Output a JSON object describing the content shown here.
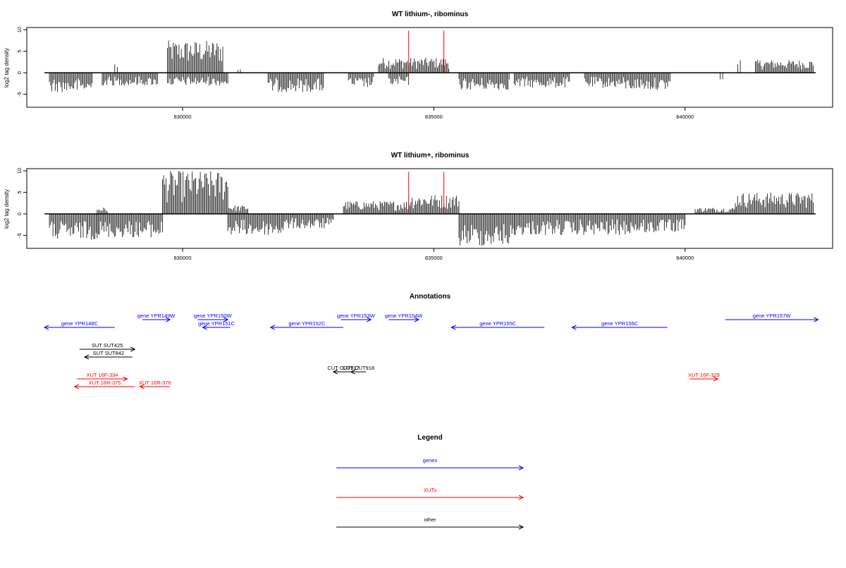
{
  "colors": {
    "gene": "#0000ff",
    "xut": "#ff0000",
    "other": "#000000",
    "marker": "#ff0000"
  },
  "chart_data": [
    {
      "type": "bar",
      "title": "WT lithium-, ribominus",
      "ylabel": "log2 tag density",
      "xlim": [
        827250,
        842600
      ],
      "ylim": [
        -8,
        10.5
      ],
      "xticks": [
        830000,
        835000,
        840000
      ],
      "xtick_labels": [
        "830000",
        "835000",
        "840000"
      ],
      "yticks": [
        10,
        5,
        0,
        -5
      ],
      "ytick_labels": [
        "10",
        "5",
        "0",
        "-5"
      ],
      "grid": false,
      "markers": [
        834500,
        835200
      ],
      "positive_regions": [
        {
          "start": 828650,
          "end": 828700,
          "max": 2.5
        },
        {
          "start": 829700,
          "end": 830800,
          "max": 7.5
        },
        {
          "start": 831100,
          "end": 831150,
          "max": 1
        },
        {
          "start": 833900,
          "end": 835300,
          "max": 3.5
        },
        {
          "start": 841050,
          "end": 841100,
          "max": 3.5
        },
        {
          "start": 841400,
          "end": 842550,
          "max": 3
        }
      ],
      "negative_regions": [
        {
          "start": 827350,
          "end": 828200,
          "max": 4.5
        },
        {
          "start": 828400,
          "end": 829500,
          "max": 3
        },
        {
          "start": 829700,
          "end": 830900,
          "max": 3
        },
        {
          "start": 831700,
          "end": 832800,
          "max": 4.5
        },
        {
          "start": 833300,
          "end": 833800,
          "max": 3.5
        },
        {
          "start": 834100,
          "end": 834500,
          "max": 3
        },
        {
          "start": 835500,
          "end": 836500,
          "max": 4
        },
        {
          "start": 836600,
          "end": 837700,
          "max": 3.5
        },
        {
          "start": 838000,
          "end": 838800,
          "max": 3.5
        },
        {
          "start": 838800,
          "end": 839700,
          "max": 4
        },
        {
          "start": 840700,
          "end": 840750,
          "max": 2
        }
      ]
    },
    {
      "type": "bar",
      "title": "WT lithium+, ribominus",
      "ylabel": "log2 tag density",
      "xlim": [
        827250,
        842600
      ],
      "ylim": [
        -8,
        10.5
      ],
      "xticks": [
        830000,
        835000,
        840000
      ],
      "xtick_labels": [
        "830000",
        "835000",
        "840000"
      ],
      "yticks": [
        10,
        5,
        0,
        -5
      ],
      "ytick_labels": [
        "10",
        "5",
        "0",
        "-5"
      ],
      "grid": false,
      "markers": [
        834500,
        835200
      ],
      "positive_regions": [
        {
          "start": 828300,
          "end": 828500,
          "max": 1.5
        },
        {
          "start": 829600,
          "end": 830900,
          "max": 10
        },
        {
          "start": 830900,
          "end": 831300,
          "max": 2
        },
        {
          "start": 833200,
          "end": 834500,
          "max": 3
        },
        {
          "start": 834500,
          "end": 835500,
          "max": 4.5
        },
        {
          "start": 840200,
          "end": 841000,
          "max": 1.5
        },
        {
          "start": 841000,
          "end": 842550,
          "max": 5
        }
      ],
      "negative_regions": [
        {
          "start": 827350,
          "end": 828300,
          "max": 6
        },
        {
          "start": 828300,
          "end": 829600,
          "max": 5.5
        },
        {
          "start": 830900,
          "end": 832000,
          "max": 5
        },
        {
          "start": 832000,
          "end": 833000,
          "max": 3.5
        },
        {
          "start": 835500,
          "end": 836600,
          "max": 7.5
        },
        {
          "start": 836600,
          "end": 837800,
          "max": 5
        },
        {
          "start": 837800,
          "end": 838900,
          "max": 5
        },
        {
          "start": 838900,
          "end": 840000,
          "max": 4.5
        }
      ]
    }
  ],
  "annotations": {
    "title": "Annotations",
    "genes": [
      {
        "label": "gene YPR148C",
        "start": 827250,
        "end": 828650,
        "dir": "left",
        "row": 1
      },
      {
        "label": "gene YPR149W",
        "start": 829200,
        "end": 829750,
        "dir": "right",
        "row": 0
      },
      {
        "label": "gene YPR150W",
        "start": 830300,
        "end": 830900,
        "dir": "right",
        "row": 0
      },
      {
        "label": "gene YPR151C",
        "start": 830400,
        "end": 830950,
        "dir": "left",
        "row": 1
      },
      {
        "label": "gene YPR152C",
        "start": 831750,
        "end": 833200,
        "dir": "left",
        "row": 1
      },
      {
        "label": "gene YPR153W",
        "start": 833150,
        "end": 833750,
        "dir": "right",
        "row": 0
      },
      {
        "label": "gene YPR154W",
        "start": 834100,
        "end": 834700,
        "dir": "right",
        "row": 0
      },
      {
        "label": "gene YPR155C",
        "start": 835350,
        "end": 837200,
        "dir": "left",
        "row": 1
      },
      {
        "label": "gene YPR156C",
        "start": 837750,
        "end": 839650,
        "dir": "left",
        "row": 1
      },
      {
        "label": "gene YPR157W",
        "start": 840800,
        "end": 842650,
        "dir": "right",
        "row": 0
      }
    ],
    "others": [
      {
        "label": "SUT SUT425",
        "start": 827950,
        "end": 829050,
        "dir": "right",
        "row": 3
      },
      {
        "label": "SUT SUT842",
        "start": 828050,
        "end": 829000,
        "dir": "left",
        "row": 4
      },
      {
        "label": "CUT CUT917",
        "start": 833000,
        "end": 833400,
        "dir": "left",
        "row": 5
      },
      {
        "label": "CUT CUT918",
        "start": 833350,
        "end": 833650,
        "dir": "left",
        "row": 5
      }
    ],
    "xuts": [
      {
        "label": "XUT 16F-334",
        "start": 827900,
        "end": 828900,
        "dir": "right",
        "row": 6
      },
      {
        "label": "XUT 16R-375",
        "start": 827850,
        "end": 829050,
        "dir": "left",
        "row": 7
      },
      {
        "label": "XUT 16R-376",
        "start": 829150,
        "end": 829750,
        "dir": "left",
        "row": 7
      },
      {
        "label": "XUT 16F-329",
        "start": 840100,
        "end": 840650,
        "dir": "right",
        "row": 6
      }
    ]
  },
  "legend": {
    "title": "Legend",
    "items": [
      {
        "label": "genes",
        "color": "#0000ff"
      },
      {
        "label": "XUTs",
        "color": "#ff0000"
      },
      {
        "label": "other",
        "color": "#000000"
      }
    ]
  }
}
